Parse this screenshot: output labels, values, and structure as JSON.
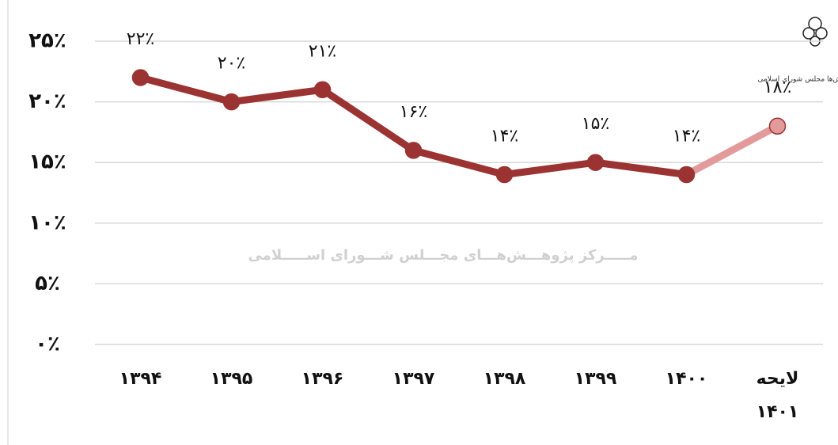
{
  "chart_data": {
    "type": "line",
    "categories": [
      "۱۳۹۴",
      "۱۳۹۵",
      "۱۳۹۶",
      "۱۳۹۷",
      "۱۳۹۸",
      "۱۳۹۹",
      "۱۴۰۰",
      "لایحه ۱۴۰۱"
    ],
    "values": [
      22,
      20,
      21,
      16,
      14,
      15,
      14,
      18
    ],
    "value_labels": [
      "۲۲٪",
      "۲۰٪",
      "۲۱٪",
      "۱۶٪",
      "۱۴٪",
      "۱۵٪",
      "۱۴٪",
      "۱۸٪"
    ],
    "color": "#9b3333",
    "point_colors": [
      "#9b3333",
      "#9b3333",
      "#9b3333",
      "#9b3333",
      "#9b3333",
      "#9b3333",
      "#9b3333",
      "#e39a9a"
    ],
    "ylim": [
      0,
      25
    ],
    "yticks": [
      {
        "value": 0,
        "label": "۰٪"
      },
      {
        "value": 5,
        "label": "۵٪"
      },
      {
        "value": 10,
        "label": "۱۰٪"
      },
      {
        "value": 15,
        "label": "۱۵٪"
      },
      {
        "value": 20,
        "label": "۲۰٪"
      },
      {
        "value": 25,
        "label": "۲۵٪"
      }
    ],
    "grid": true,
    "watermark": "مـــــرکز پژوهـــش‌هـــای مجـــلس شـــورای اســـــلامی",
    "logo_text": "مرکز پژوهش‌ها مجلس شورای اسلامی"
  }
}
